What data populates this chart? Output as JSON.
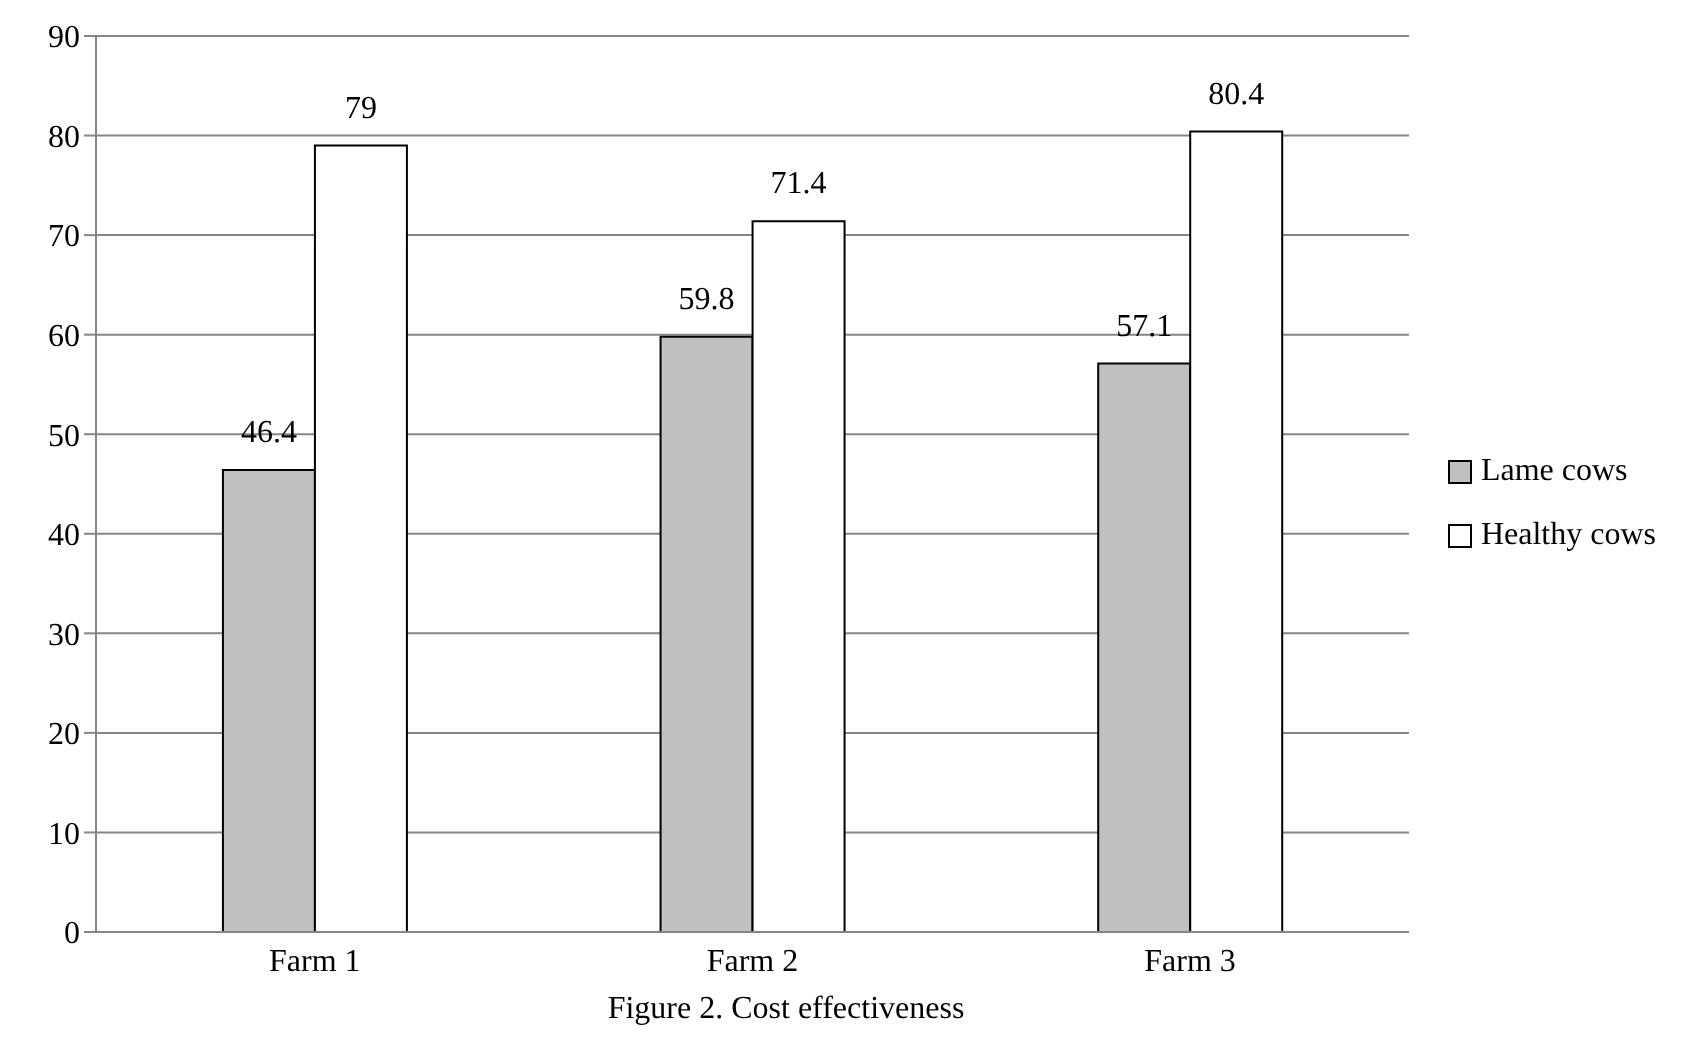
{
  "chart_data": {
    "type": "bar",
    "categories": [
      "Farm 1",
      "Farm 2",
      "Farm 3"
    ],
    "series": [
      {
        "name": "Lame cows",
        "color": "#c0c0c0",
        "values": [
          46.4,
          59.8,
          57.1
        ]
      },
      {
        "name": "Healthy cows",
        "color": "#ffffff",
        "values": [
          79,
          71.4,
          80.4
        ]
      }
    ],
    "ylim": [
      0,
      90
    ],
    "yticks": [
      0,
      10,
      20,
      30,
      40,
      50,
      60,
      70,
      80,
      90
    ],
    "grid": "y",
    "legend": "right",
    "data_labels": true,
    "annotations": [
      "Figure 2. Cost effectiveness"
    ]
  }
}
